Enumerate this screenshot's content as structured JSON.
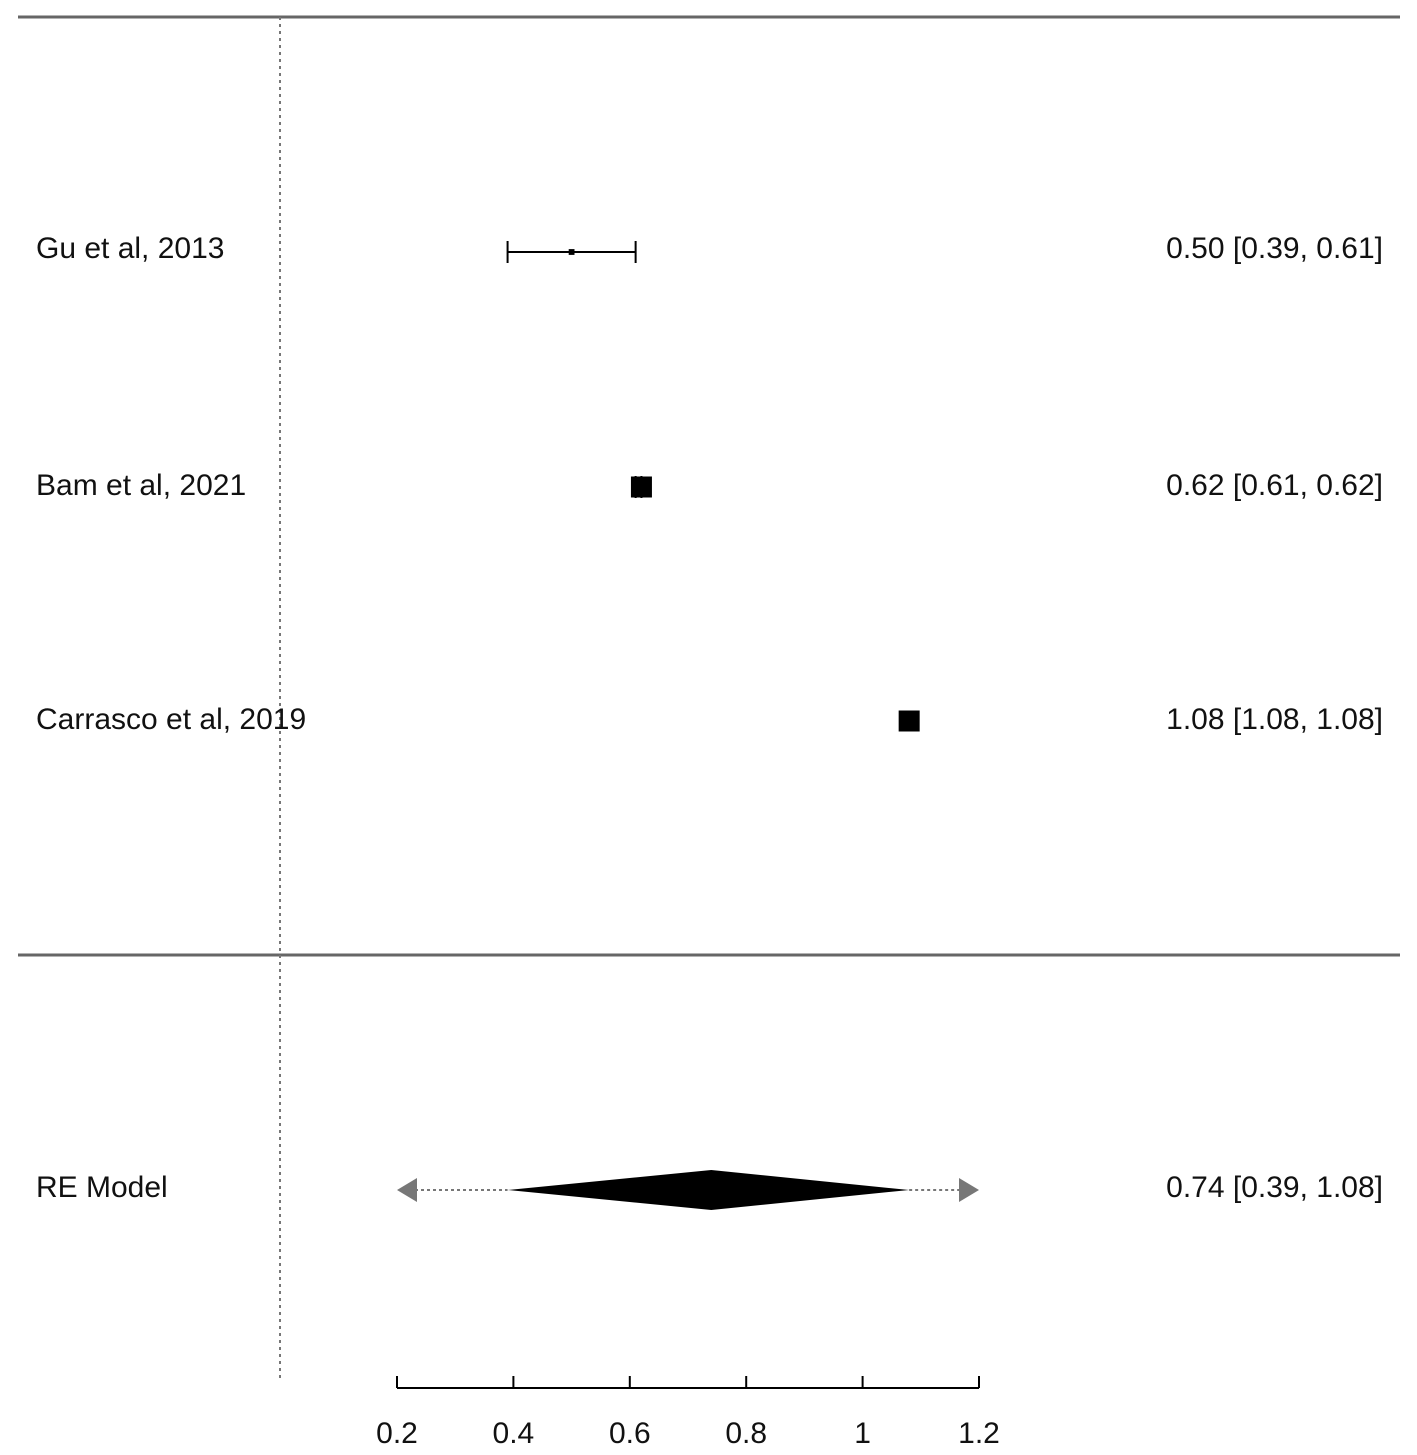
{
  "chart_data": {
    "type": "forest",
    "title": "",
    "xlabel": "",
    "ylabel": "",
    "xlim": [
      0.2,
      1.2
    ],
    "xticks": [
      0.2,
      0.4,
      0.6,
      0.8,
      1.0,
      1.2
    ],
    "xtick_labels": [
      "0.2",
      "0.4",
      "0.6",
      "0.8",
      "1",
      "1.2"
    ],
    "reference_line": 0,
    "grid": false,
    "studies": [
      {
        "label": "Gu et al, 2013",
        "estimate": 0.5,
        "ci_low": 0.39,
        "ci_high": 0.61,
        "weight": 0.05,
        "text": "0.50 [0.39, 0.61]"
      },
      {
        "label": "Bam et  al, 2021",
        "estimate": 0.62,
        "ci_low": 0.61,
        "ci_high": 0.62,
        "weight": 1.0,
        "text": "0.62 [0.61, 0.62]"
      },
      {
        "label": "Carrasco et al, 2019",
        "estimate": 1.08,
        "ci_low": 1.08,
        "ci_high": 1.08,
        "weight": 1.0,
        "text": "1.08 [1.08, 1.08]"
      }
    ],
    "summary": {
      "label": "RE Model",
      "estimate": 0.74,
      "ci_low": 0.39,
      "ci_high": 1.08,
      "pi_low": 0.2,
      "pi_high": 1.2,
      "text": "0.74 [0.39, 1.08]"
    }
  },
  "colors": {
    "ink": "#000000",
    "rule": "#666666",
    "prediction_arrow": "#777777"
  }
}
